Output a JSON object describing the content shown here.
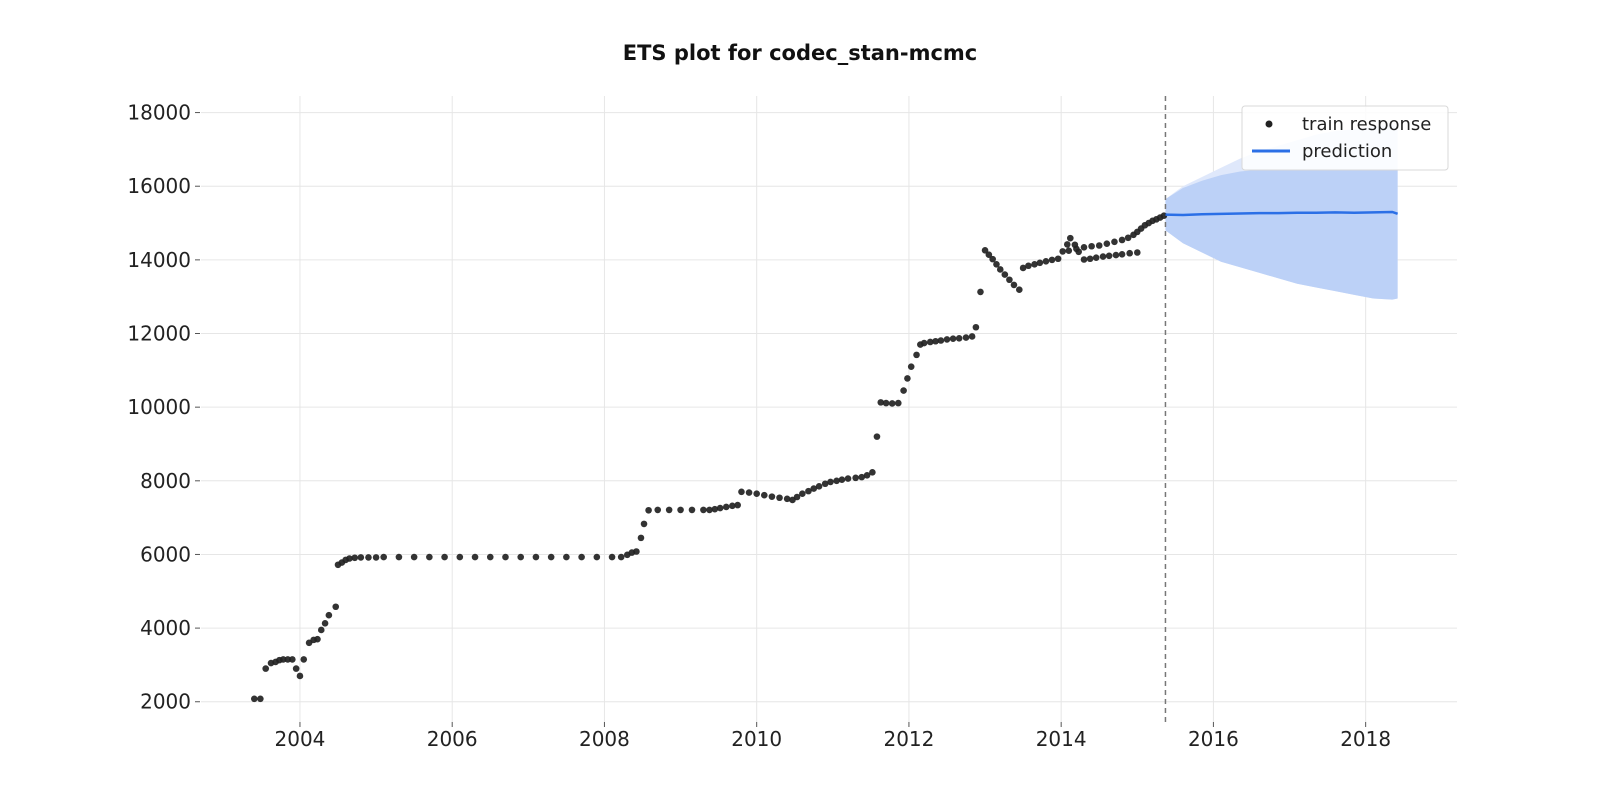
{
  "chart_data": {
    "type": "scatter",
    "title": "ETS plot for codec_stan-mcmc",
    "xlabel": "",
    "ylabel": "",
    "xlim": [
      2002.7,
      2019.2
    ],
    "ylim": [
      1450,
      18450
    ],
    "x_ticks": [
      2004,
      2006,
      2008,
      2010,
      2012,
      2014,
      2016,
      2018
    ],
    "x_tick_labels": [
      "2004",
      "2006",
      "2008",
      "2010",
      "2012",
      "2014",
      "2016",
      "2018"
    ],
    "y_ticks": [
      2000,
      4000,
      6000,
      8000,
      10000,
      12000,
      14000,
      16000,
      18000
    ],
    "y_tick_labels": [
      "2000",
      "4000",
      "6000",
      "8000",
      "10000",
      "12000",
      "14000",
      "16000",
      "18000"
    ],
    "grid": true,
    "legend_position": "top-right",
    "train_end": 2015.37,
    "series": [
      {
        "name": "train response",
        "kind": "scatter",
        "color": "#222222",
        "points": [
          [
            2003.4,
            2080
          ],
          [
            2003.48,
            2080
          ],
          [
            2003.55,
            2900
          ],
          [
            2003.62,
            3050
          ],
          [
            2003.68,
            3080
          ],
          [
            2003.73,
            3130
          ],
          [
            2003.78,
            3150
          ],
          [
            2003.84,
            3150
          ],
          [
            2003.9,
            3150
          ],
          [
            2003.95,
            2900
          ],
          [
            2004.0,
            2700
          ],
          [
            2004.05,
            3150
          ],
          [
            2004.12,
            3600
          ],
          [
            2004.18,
            3680
          ],
          [
            2004.23,
            3700
          ],
          [
            2004.28,
            3950
          ],
          [
            2004.33,
            4130
          ],
          [
            2004.38,
            4350
          ],
          [
            2004.47,
            4580
          ],
          [
            2004.5,
            5720
          ],
          [
            2004.55,
            5780
          ],
          [
            2004.6,
            5850
          ],
          [
            2004.65,
            5890
          ],
          [
            2004.72,
            5910
          ],
          [
            2004.8,
            5920
          ],
          [
            2004.9,
            5920
          ],
          [
            2005.0,
            5920
          ],
          [
            2005.1,
            5930
          ],
          [
            2005.3,
            5930
          ],
          [
            2005.5,
            5930
          ],
          [
            2005.7,
            5930
          ],
          [
            2005.9,
            5930
          ],
          [
            2006.1,
            5930
          ],
          [
            2006.3,
            5930
          ],
          [
            2006.5,
            5930
          ],
          [
            2006.7,
            5930
          ],
          [
            2006.9,
            5930
          ],
          [
            2007.1,
            5930
          ],
          [
            2007.3,
            5930
          ],
          [
            2007.5,
            5930
          ],
          [
            2007.7,
            5930
          ],
          [
            2007.9,
            5930
          ],
          [
            2008.1,
            5930
          ],
          [
            2008.22,
            5930
          ],
          [
            2008.3,
            5990
          ],
          [
            2008.36,
            6050
          ],
          [
            2008.42,
            6080
          ],
          [
            2008.48,
            6450
          ],
          [
            2008.52,
            6830
          ],
          [
            2008.58,
            7200
          ],
          [
            2008.7,
            7210
          ],
          [
            2008.85,
            7210
          ],
          [
            2009.0,
            7210
          ],
          [
            2009.15,
            7210
          ],
          [
            2009.3,
            7210
          ],
          [
            2009.38,
            7210
          ],
          [
            2009.45,
            7230
          ],
          [
            2009.52,
            7260
          ],
          [
            2009.6,
            7290
          ],
          [
            2009.68,
            7320
          ],
          [
            2009.75,
            7340
          ],
          [
            2009.8,
            7700
          ],
          [
            2009.9,
            7680
          ],
          [
            2010.0,
            7650
          ],
          [
            2010.1,
            7610
          ],
          [
            2010.2,
            7570
          ],
          [
            2010.3,
            7540
          ],
          [
            2010.4,
            7510
          ],
          [
            2010.47,
            7480
          ],
          [
            2010.53,
            7560
          ],
          [
            2010.6,
            7650
          ],
          [
            2010.68,
            7720
          ],
          [
            2010.75,
            7790
          ],
          [
            2010.82,
            7850
          ],
          [
            2010.9,
            7920
          ],
          [
            2010.97,
            7970
          ],
          [
            2011.05,
            8000
          ],
          [
            2011.12,
            8030
          ],
          [
            2011.2,
            8060
          ],
          [
            2011.3,
            8080
          ],
          [
            2011.38,
            8100
          ],
          [
            2011.45,
            8150
          ],
          [
            2011.52,
            8230
          ],
          [
            2011.58,
            9200
          ],
          [
            2011.63,
            10130
          ],
          [
            2011.7,
            10110
          ],
          [
            2011.78,
            10100
          ],
          [
            2011.86,
            10110
          ],
          [
            2011.93,
            10450
          ],
          [
            2011.98,
            10780
          ],
          [
            2012.03,
            11100
          ],
          [
            2012.1,
            11420
          ],
          [
            2012.15,
            11700
          ],
          [
            2012.2,
            11740
          ],
          [
            2012.28,
            11770
          ],
          [
            2012.35,
            11790
          ],
          [
            2012.42,
            11810
          ],
          [
            2012.5,
            11840
          ],
          [
            2012.58,
            11860
          ],
          [
            2012.66,
            11870
          ],
          [
            2012.75,
            11890
          ],
          [
            2012.83,
            11920
          ],
          [
            2012.88,
            12170
          ],
          [
            2012.94,
            13130
          ],
          [
            2013.0,
            14260
          ],
          [
            2013.05,
            14140
          ],
          [
            2013.1,
            14020
          ],
          [
            2013.15,
            13880
          ],
          [
            2013.2,
            13740
          ],
          [
            2013.26,
            13600
          ],
          [
            2013.32,
            13460
          ],
          [
            2013.38,
            13320
          ],
          [
            2013.45,
            13190
          ],
          [
            2013.5,
            13780
          ],
          [
            2013.57,
            13840
          ],
          [
            2013.65,
            13880
          ],
          [
            2013.72,
            13920
          ],
          [
            2013.8,
            13960
          ],
          [
            2013.88,
            14000
          ],
          [
            2013.96,
            14030
          ],
          [
            2014.02,
            14230
          ],
          [
            2014.08,
            14420
          ],
          [
            2014.12,
            14590
          ],
          [
            2014.18,
            14410
          ],
          [
            2014.23,
            14220
          ],
          [
            2014.3,
            14010
          ],
          [
            2014.38,
            14030
          ],
          [
            2014.46,
            14060
          ],
          [
            2014.55,
            14090
          ],
          [
            2014.63,
            14110
          ],
          [
            2014.72,
            14130
          ],
          [
            2014.8,
            14150
          ],
          [
            2014.9,
            14180
          ],
          [
            2015.0,
            14200
          ],
          [
            2014.1,
            14250
          ],
          [
            2014.2,
            14300
          ],
          [
            2014.3,
            14340
          ],
          [
            2014.4,
            14370
          ],
          [
            2014.5,
            14390
          ],
          [
            2014.6,
            14440
          ],
          [
            2014.7,
            14490
          ],
          [
            2014.8,
            14540
          ],
          [
            2014.88,
            14600
          ],
          [
            2014.95,
            14680
          ],
          [
            2015.0,
            14760
          ],
          [
            2015.05,
            14850
          ],
          [
            2015.1,
            14940
          ],
          [
            2015.15,
            15000
          ],
          [
            2015.2,
            15060
          ],
          [
            2015.25,
            15100
          ],
          [
            2015.3,
            15150
          ],
          [
            2015.35,
            15200
          ]
        ]
      },
      {
        "name": "prediction",
        "kind": "line",
        "color": "#2b6fe6",
        "band_color": "#bcd1f7",
        "band_color_light": "#dfe8fb",
        "x": [
          2015.37,
          2015.6,
          2015.85,
          2016.1,
          2016.35,
          2016.6,
          2016.85,
          2017.1,
          2017.35,
          2017.6,
          2017.85,
          2018.1,
          2018.35,
          2018.42
        ],
        "mean": [
          15230,
          15220,
          15240,
          15250,
          15260,
          15270,
          15270,
          15280,
          15280,
          15290,
          15280,
          15290,
          15300,
          15250
        ],
        "upper": [
          15650,
          16000,
          16250,
          16500,
          16750,
          16950,
          17100,
          17250,
          17400,
          17500,
          17550,
          17620,
          17680,
          17600
        ],
        "lower": [
          14800,
          14450,
          14200,
          13950,
          13800,
          13650,
          13500,
          13350,
          13250,
          13150,
          13050,
          12950,
          12920,
          12950
        ],
        "upper_dark": [
          15650,
          15950,
          16150,
          16300,
          16400,
          16450,
          16450,
          16450,
          16450,
          16450,
          16450,
          16450,
          16450,
          16450
        ]
      }
    ]
  },
  "legend": {
    "items": [
      {
        "label": "train response",
        "kind": "dot",
        "color": "#222222"
      },
      {
        "label": "prediction",
        "kind": "line",
        "color": "#2b6fe6"
      }
    ]
  }
}
